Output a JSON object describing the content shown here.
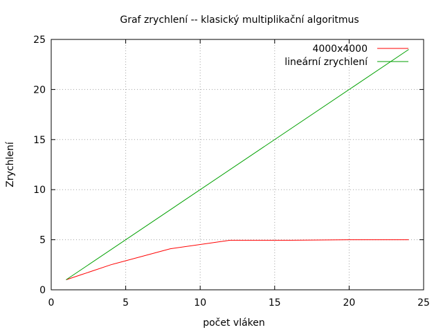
{
  "chart_data": {
    "type": "line",
    "title": "Graf zrychlení -- klasický multiplikační algoritmus",
    "xlabel": "počet vláken",
    "ylabel": "Zrychlení",
    "xlim": [
      0,
      25
    ],
    "ylim": [
      0,
      25
    ],
    "xticks": [
      0,
      5,
      10,
      15,
      20,
      25
    ],
    "yticks": [
      0,
      5,
      10,
      15,
      20,
      25
    ],
    "grid": true,
    "legend_position": "top-right",
    "series": [
      {
        "name": "4000x4000",
        "color": "#ff0000",
        "x": [
          1,
          2,
          4,
          8,
          12,
          16,
          20,
          24
        ],
        "y": [
          1,
          1.5,
          2.5,
          4.1,
          4.95,
          4.95,
          5.0,
          5.0
        ]
      },
      {
        "name": "lineární zrychlení",
        "color": "#00a000",
        "x": [
          1,
          24
        ],
        "y": [
          1,
          24
        ]
      }
    ]
  }
}
